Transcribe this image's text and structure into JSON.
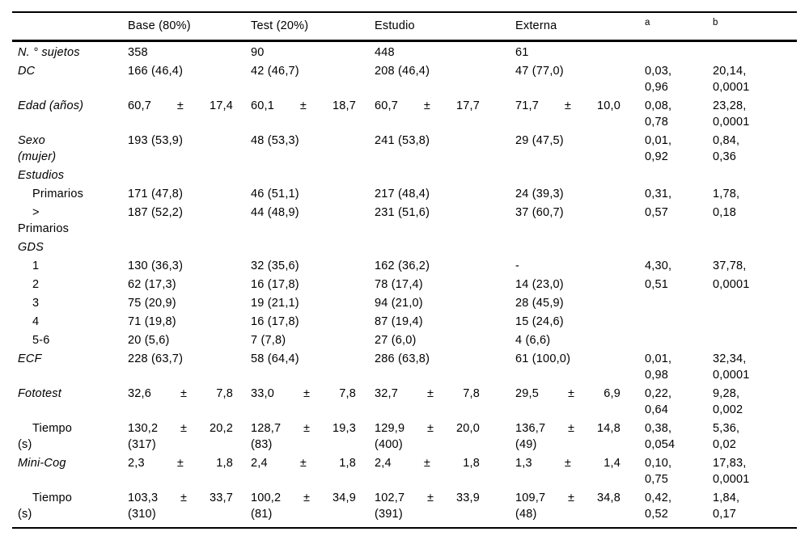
{
  "page": {
    "background": "#ffffff",
    "text_color": "#000000",
    "rule_color": "#000000"
  },
  "table": {
    "columns": [
      {
        "key": "label",
        "header": "",
        "superscript": false
      },
      {
        "key": "base",
        "header": "Base (80%)",
        "superscript": false
      },
      {
        "key": "test",
        "header": "Test (20%)",
        "superscript": false
      },
      {
        "key": "estudio",
        "header": "Estudio",
        "superscript": false
      },
      {
        "key": "externa",
        "header": "Externa",
        "superscript": false
      },
      {
        "key": "a",
        "header": "a",
        "superscript": true
      },
      {
        "key": "b",
        "header": "b",
        "superscript": true
      }
    ],
    "rows": [
      {
        "id": "n-sujetos",
        "label": {
          "lines": [
            "N. ° sujetos"
          ],
          "italic": true,
          "indent": false
        },
        "cells": {
          "base": [
            "358"
          ],
          "test": [
            "90"
          ],
          "estudio": [
            "448"
          ],
          "externa": [
            "61"
          ],
          "a": [],
          "b": []
        }
      },
      {
        "id": "dc",
        "label": {
          "lines": [
            "DC"
          ],
          "italic": true,
          "indent": false
        },
        "cells": {
          "base": [
            "166 (46,4)"
          ],
          "test": [
            "42 (46,7)"
          ],
          "estudio": [
            "208 (46,4)"
          ],
          "externa": [
            "47 (77,0)"
          ],
          "a": [
            "0,03,",
            "0,96"
          ],
          "b": [
            "20,14,",
            "0,0001"
          ]
        }
      },
      {
        "id": "edad",
        "label": {
          "lines": [
            "Edad (años)"
          ],
          "italic": true,
          "indent": false
        },
        "cells": {
          "base": [
            "60,7|±|17,4"
          ],
          "test": [
            "60,1|±|18,7"
          ],
          "estudio": [
            "60,7|±|17,7"
          ],
          "externa": [
            "71,7|±|10,0"
          ],
          "a": [
            "0,08,",
            "0,78"
          ],
          "b": [
            "23,28,",
            "0,0001"
          ]
        }
      },
      {
        "id": "sexo-mujer",
        "label": {
          "lines": [
            "Sexo",
            "(mujer)"
          ],
          "italic": true,
          "indent": false
        },
        "cells": {
          "base": [
            "193 (53,9)"
          ],
          "test": [
            "48 (53,3)"
          ],
          "estudio": [
            "241 (53,8)"
          ],
          "externa": [
            "29 (47,5)"
          ],
          "a": [
            "0,01,",
            "0,92"
          ],
          "b": [
            "0,84,",
            "0,36"
          ]
        }
      },
      {
        "id": "estudios",
        "label": {
          "lines": [
            "Estudios"
          ],
          "italic": true,
          "indent": false
        },
        "cells": {
          "base": [],
          "test": [],
          "estudio": [],
          "externa": [],
          "a": [],
          "b": []
        }
      },
      {
        "id": "primarios",
        "label": {
          "lines": [
            "Primarios"
          ],
          "italic": false,
          "indent": true
        },
        "cells": {
          "base": [
            "171 (47,8)"
          ],
          "test": [
            "46 (51,1)"
          ],
          "estudio": [
            "217 (48,4)"
          ],
          "externa": [
            "24 (39,3)"
          ],
          "a": [
            "0,31,"
          ],
          "b": [
            "1,78,"
          ]
        }
      },
      {
        "id": "mayor-primarios",
        "label": {
          "lines": [
            ">",
            "Primarios"
          ],
          "italic": false,
          "indent": true
        },
        "cells": {
          "base": [
            "187 (52,2)"
          ],
          "test": [
            "44 (48,9)"
          ],
          "estudio": [
            "231 (51,6)"
          ],
          "externa": [
            "37 (60,7)"
          ],
          "a": [
            "0,57"
          ],
          "b": [
            "0,18"
          ]
        }
      },
      {
        "id": "gds",
        "label": {
          "lines": [
            "GDS"
          ],
          "italic": true,
          "indent": false
        },
        "cells": {
          "base": [],
          "test": [],
          "estudio": [],
          "externa": [],
          "a": [],
          "b": []
        }
      },
      {
        "id": "gds-1",
        "label": {
          "lines": [
            "1"
          ],
          "italic": false,
          "indent": true
        },
        "cells": {
          "base": [
            "130 (36,3)"
          ],
          "test": [
            "32 (35,6)"
          ],
          "estudio": [
            "162 (36,2)"
          ],
          "externa": [
            "-"
          ],
          "a": [
            "4,30,"
          ],
          "b": [
            "37,78,"
          ]
        }
      },
      {
        "id": "gds-2",
        "label": {
          "lines": [
            "2"
          ],
          "italic": false,
          "indent": true
        },
        "cells": {
          "base": [
            "62 (17,3)"
          ],
          "test": [
            "16 (17,8)"
          ],
          "estudio": [
            "78 (17,4)"
          ],
          "externa": [
            "14 (23,0)"
          ],
          "a": [
            "0,51"
          ],
          "b": [
            "0,0001"
          ]
        }
      },
      {
        "id": "gds-3",
        "label": {
          "lines": [
            "3"
          ],
          "italic": false,
          "indent": true
        },
        "cells": {
          "base": [
            "75 (20,9)"
          ],
          "test": [
            "19 (21,1)"
          ],
          "estudio": [
            "94 (21,0)"
          ],
          "externa": [
            "28 (45,9)"
          ],
          "a": [],
          "b": []
        }
      },
      {
        "id": "gds-4",
        "label": {
          "lines": [
            "4"
          ],
          "italic": false,
          "indent": true
        },
        "cells": {
          "base": [
            "71 (19,8)"
          ],
          "test": [
            "16 (17,8)"
          ],
          "estudio": [
            "87 (19,4)"
          ],
          "externa": [
            "15 (24,6)"
          ],
          "a": [],
          "b": []
        }
      },
      {
        "id": "gds-5-6",
        "label": {
          "lines": [
            "5-6"
          ],
          "italic": false,
          "indent": true
        },
        "cells": {
          "base": [
            "20 (5,6)"
          ],
          "test": [
            "7 (7,8)"
          ],
          "estudio": [
            "27 (6,0)"
          ],
          "externa": [
            "4 (6,6)"
          ],
          "a": [],
          "b": []
        }
      },
      {
        "id": "ecf",
        "label": {
          "lines": [
            "ECF"
          ],
          "italic": true,
          "indent": false
        },
        "cells": {
          "base": [
            "228 (63,7)"
          ],
          "test": [
            "58 (64,4)"
          ],
          "estudio": [
            "286 (63,8)"
          ],
          "externa": [
            "61 (100,0)"
          ],
          "a": [
            "0,01,",
            "0,98"
          ],
          "b": [
            "32,34,",
            "0,0001"
          ]
        }
      },
      {
        "id": "fototest",
        "label": {
          "lines": [
            "Fototest"
          ],
          "italic": true,
          "indent": false
        },
        "cells": {
          "base": [
            "32,6|±|7,8"
          ],
          "test": [
            "33,0|±|7,8"
          ],
          "estudio": [
            "32,7|±|7,8"
          ],
          "externa": [
            "29,5|±|6,9"
          ],
          "a": [
            "0,22,",
            "0,64"
          ],
          "b": [
            "9,28,",
            "0,002"
          ]
        }
      },
      {
        "id": "fototest-tiempo",
        "label": {
          "lines": [
            "Tiempo",
            "(s)"
          ],
          "italic": false,
          "indent": true
        },
        "cells": {
          "base": [
            "130,2|±|20,2",
            "(317)"
          ],
          "test": [
            "128,7|±|19,3",
            "(83)"
          ],
          "estudio": [
            "129,9|±|20,0",
            "(400)"
          ],
          "externa": [
            "136,7|±|14,8",
            "(49)"
          ],
          "a": [
            "0,38,",
            "0,054"
          ],
          "b": [
            "5,36,",
            "0,02"
          ]
        }
      },
      {
        "id": "mini-cog",
        "label": {
          "lines": [
            "Mini-Cog"
          ],
          "italic": true,
          "indent": false
        },
        "cells": {
          "base": [
            "2,3|±|1,8"
          ],
          "test": [
            "2,4|±|1,8"
          ],
          "estudio": [
            "2,4|±|1,8"
          ],
          "externa": [
            "1,3|±|1,4"
          ],
          "a": [
            "0,10,",
            "0,75"
          ],
          "b": [
            "17,83,",
            "0,0001"
          ]
        }
      },
      {
        "id": "mini-cog-tiempo",
        "label": {
          "lines": [
            "Tiempo",
            "(s)"
          ],
          "italic": false,
          "indent": true
        },
        "cells": {
          "base": [
            "103,3|±|33,7",
            "(310)"
          ],
          "test": [
            "100,2|±|34,9",
            "(81)"
          ],
          "estudio": [
            "102,7|±|33,9",
            "(391)"
          ],
          "externa": [
            "109,7|±|34,8",
            "(48)"
          ],
          "a": [
            "0,42,",
            "0,52"
          ],
          "b": [
            "1,84,",
            "0,17"
          ]
        }
      }
    ]
  }
}
